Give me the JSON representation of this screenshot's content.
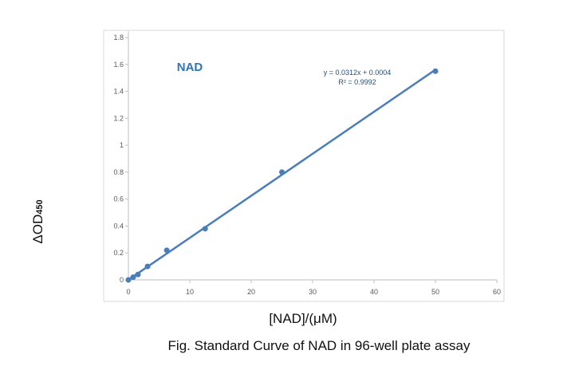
{
  "chart_data": {
    "type": "scatter",
    "title": "NAD",
    "caption": "Fig. Standard Curve of NAD in 96-well plate assay",
    "xlabel": "[NAD]/(μM)",
    "ylabel_main": "ΔOD",
    "ylabel_sub": "450",
    "xlim": [
      0,
      60
    ],
    "ylim": [
      0,
      1.8
    ],
    "x_ticks": [
      "0",
      "10",
      "20",
      "30",
      "40",
      "50",
      "60"
    ],
    "y_ticks": [
      "0",
      "0.2",
      "0.4",
      "0.6",
      "0.8",
      "1",
      "1.2",
      "1.4",
      "1.6",
      "1.8"
    ],
    "grid": false,
    "series": [
      {
        "x": [
          0,
          0.78,
          1.56,
          3.125,
          6.25,
          12.5,
          25,
          50
        ],
        "y": [
          0,
          0.02,
          0.04,
          0.1,
          0.22,
          0.38,
          0.8,
          1.55
        ]
      }
    ],
    "trendline": {
      "slope": 0.0312,
      "intercept": 0.0004,
      "equation": "y = 0.0312x + 0.0004",
      "r2": "R² = 0.9992"
    },
    "colors": {
      "series": "#4a7ebb",
      "title": "#2e75b6",
      "axis": "#bfbfbf",
      "tick_text": "#595959"
    }
  }
}
